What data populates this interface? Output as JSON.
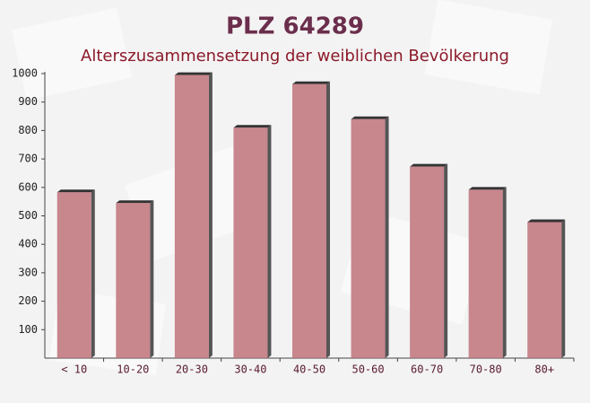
{
  "chart_data": {
    "type": "bar",
    "title": "PLZ 64289",
    "subtitle": "Alterszusammensetzung der weiblichen Bevölkerung",
    "categories": [
      "< 10",
      "10-20",
      "20-30",
      "30-40",
      "40-50",
      "50-60",
      "60-70",
      "70-80",
      "80+"
    ],
    "values": [
      583,
      545,
      995,
      810,
      963,
      840,
      673,
      592,
      478
    ],
    "color": "#c0727a",
    "ylim": [
      0,
      1000
    ],
    "yticks": [
      100,
      200,
      300,
      400,
      500,
      600,
      700,
      800,
      900,
      1000
    ],
    "grid": false
  }
}
